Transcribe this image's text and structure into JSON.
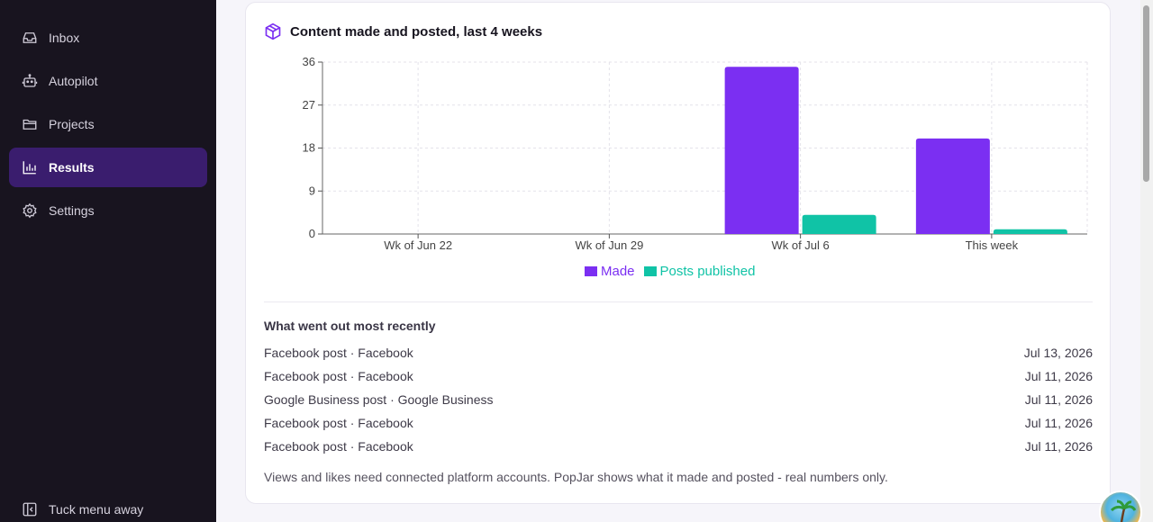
{
  "sidebar": {
    "items": [
      {
        "label": "Inbox",
        "icon": "inbox-icon",
        "active": false
      },
      {
        "label": "Autopilot",
        "icon": "robot-icon",
        "active": false
      },
      {
        "label": "Projects",
        "icon": "folder-icon",
        "active": false
      },
      {
        "label": "Results",
        "icon": "bar-chart-icon",
        "active": true
      },
      {
        "label": "Settings",
        "icon": "gear-icon",
        "active": false
      }
    ],
    "collapse_label": "Tuck menu away"
  },
  "card": {
    "title": "Content made and posted, last 4 weeks",
    "recent_title": "What went out most recently",
    "recent": [
      {
        "item": "Facebook post · Facebook",
        "date": "Jul 13, 2026"
      },
      {
        "item": "Facebook post · Facebook",
        "date": "Jul 11, 2026"
      },
      {
        "item": "Google Business post · Google Business",
        "date": "Jul 11, 2026"
      },
      {
        "item": "Facebook post · Facebook",
        "date": "Jul 11, 2026"
      },
      {
        "item": "Facebook post · Facebook",
        "date": "Jul 11, 2026"
      }
    ],
    "footnote": "Views and likes need connected platform accounts. PopJar shows what it made and posted - real numbers only."
  },
  "chart_data": {
    "type": "bar",
    "categories": [
      "Wk of Jun 22",
      "Wk of Jun 29",
      "Wk of Jul 6",
      "This week"
    ],
    "series": [
      {
        "name": "Made",
        "values": [
          0,
          0,
          35,
          20
        ],
        "color": "#7b2ff2"
      },
      {
        "name": "Posts published",
        "values": [
          0,
          0,
          4,
          1
        ],
        "color": "#10c3a6"
      }
    ],
    "yticks": [
      0,
      9,
      18,
      27,
      36
    ],
    "ylim": [
      0,
      36
    ],
    "grid": true,
    "legend_position": "bottom-center"
  },
  "colors": {
    "accent": "#7b2ff2",
    "secondary": "#10c3a6",
    "sidebar_bg": "#18141f",
    "active_bg": "#3a1d6e"
  }
}
